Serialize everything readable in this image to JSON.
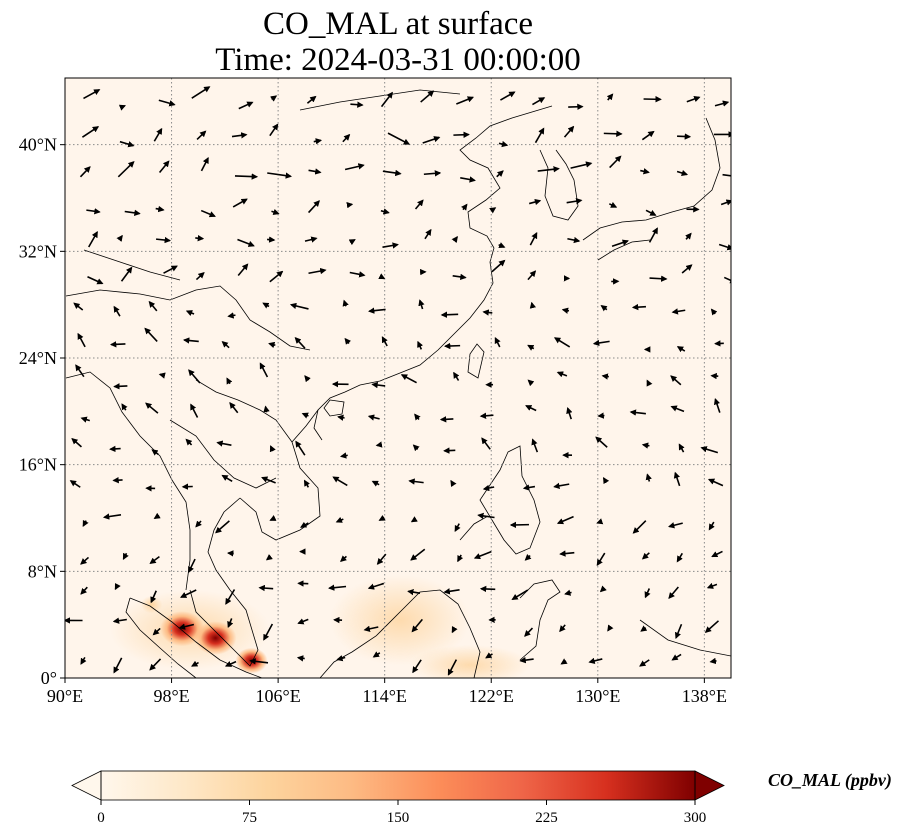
{
  "title": {
    "line1": "CO_MAL at surface",
    "line2": "Time: 2024-03-31 00:00:00"
  },
  "map": {
    "lon_range": [
      90,
      140
    ],
    "lat_range": [
      0,
      45
    ],
    "lon_ticks": [
      {
        "value": 90,
        "label": "90°E"
      },
      {
        "value": 98,
        "label": "98°E"
      },
      {
        "value": 106,
        "label": "106°E"
      },
      {
        "value": 114,
        "label": "114°E"
      },
      {
        "value": 122,
        "label": "122°E"
      },
      {
        "value": 130,
        "label": "130°E"
      },
      {
        "value": 138,
        "label": "138°E"
      }
    ],
    "lat_ticks": [
      {
        "value": 0,
        "label": "0°"
      },
      {
        "value": 8,
        "label": "8°N"
      },
      {
        "value": 16,
        "label": "16°N"
      },
      {
        "value": 24,
        "label": "24°N"
      },
      {
        "value": 32,
        "label": "32°N"
      },
      {
        "value": 40,
        "label": "40°N"
      }
    ],
    "gridlines": "dotted",
    "background_color": "#fff5eb",
    "high_concentration_spots": [
      {
        "lon": 98.8,
        "lat": 3.7,
        "value": 300
      },
      {
        "lon": 101.3,
        "lat": 3.0,
        "value": 280
      },
      {
        "lon": 104.0,
        "lat": 1.3,
        "value": 190
      },
      {
        "lon": 96.5,
        "lat": 5.5,
        "value": 90
      }
    ]
  },
  "colorbar": {
    "label": "CO_MAL (ppbv)",
    "min": 0,
    "max": 300,
    "extend": "both",
    "colormap": "OrRd",
    "ticks": [
      "0",
      "75",
      "150",
      "225",
      "300"
    ]
  }
}
